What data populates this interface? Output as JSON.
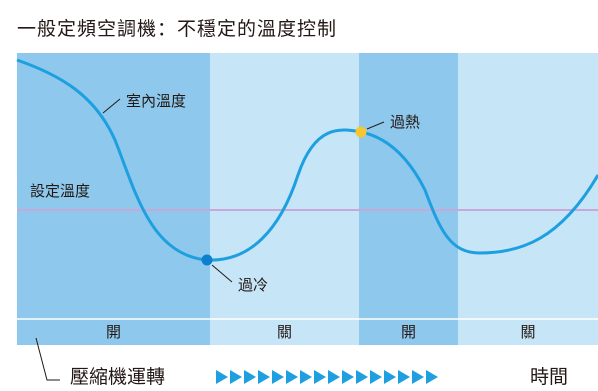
{
  "title": "一般定頻空調機：不穩定的溫度控制",
  "labels": {
    "indoor_temp": "室內溫度",
    "set_temp": "設定溫度",
    "overheat": "過熱",
    "overcool": "過冷"
  },
  "compressor_states": [
    "開",
    "關",
    "開",
    "關"
  ],
  "footer": {
    "label": "壓縮機運轉",
    "time": "時間",
    "arrow_count": 16
  },
  "colors": {
    "on_band": "#8ec8ec",
    "off_band": "#c6e6f8",
    "curve": "#1e9fe0",
    "set_line": "#c8a8d8",
    "overheat_dot": "#f8c630",
    "overcool_dot": "#0e7fcf",
    "arrows": "#1e9fe0"
  }
}
